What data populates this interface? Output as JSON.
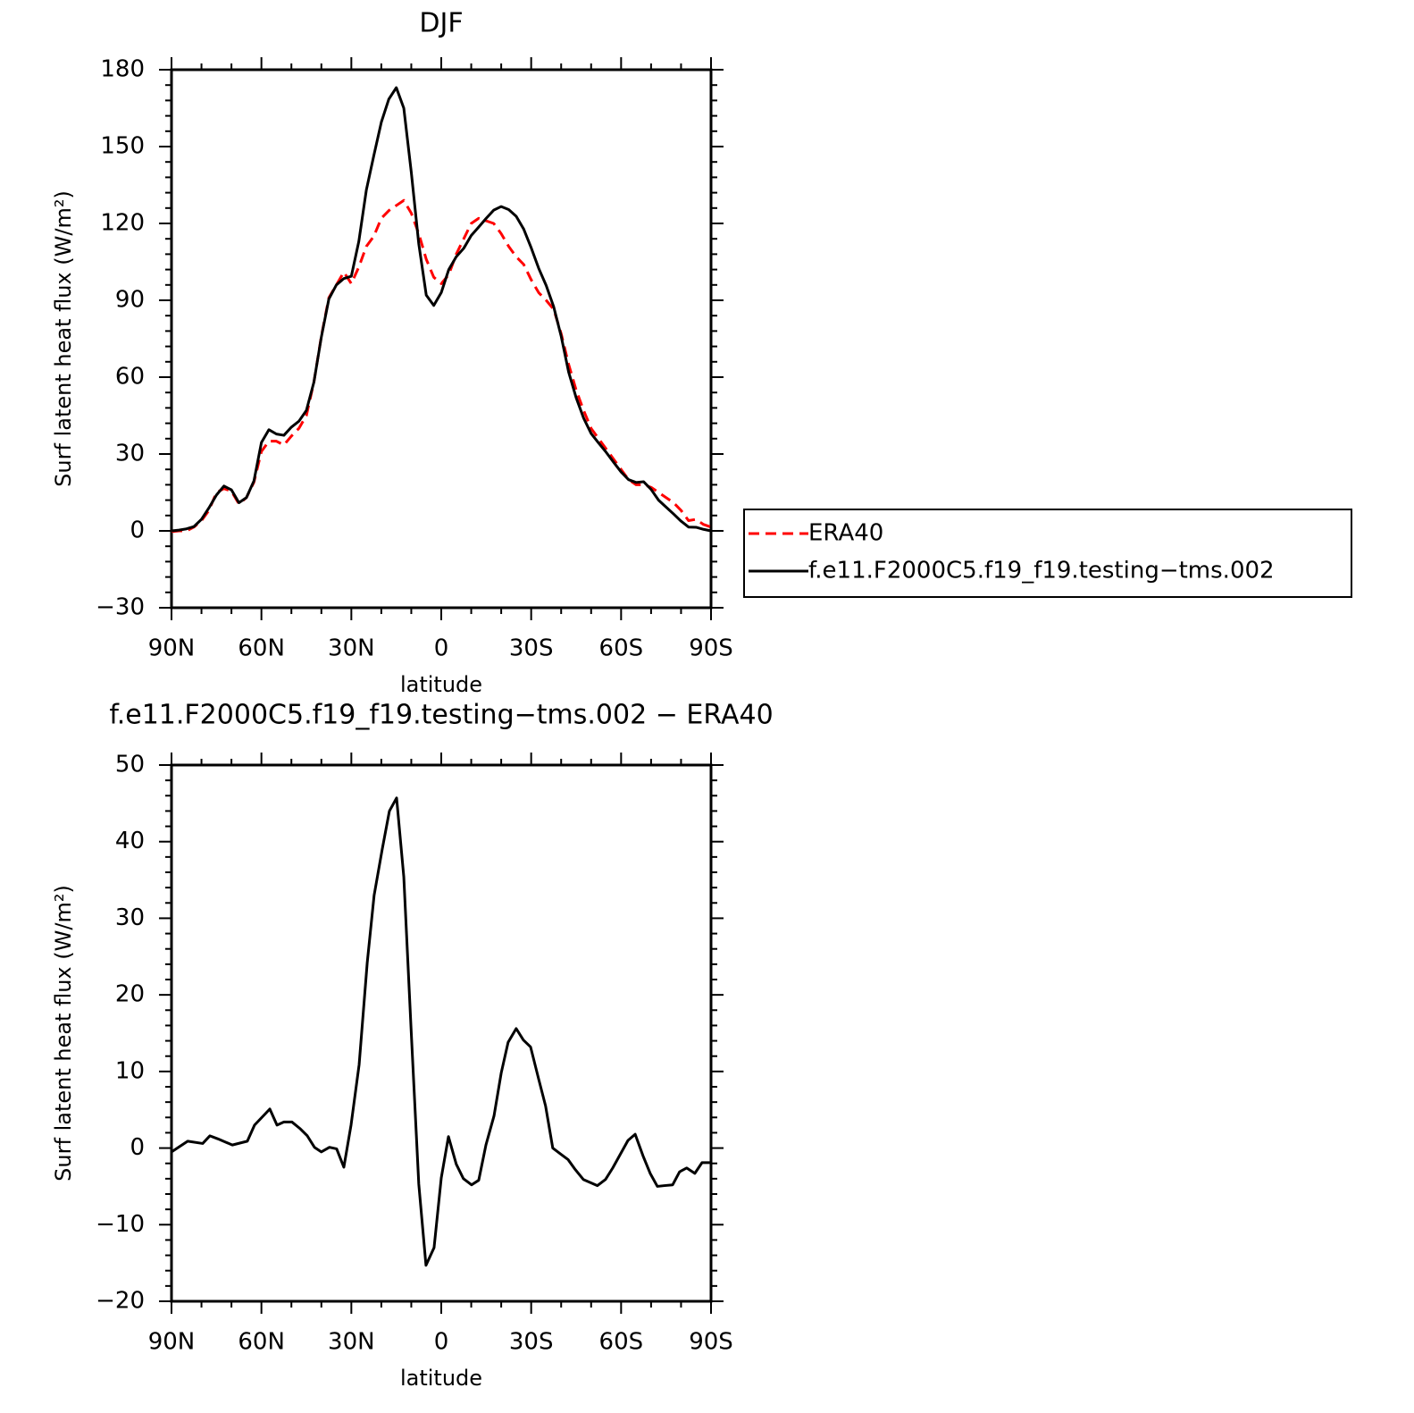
{
  "chart_data": [
    {
      "type": "line",
      "title": "DJF",
      "xlabel": "latitude",
      "ylabel": "Surf latent heat flux (W/m²)",
      "x": [
        90,
        87.5,
        85,
        82.5,
        80,
        77.5,
        75,
        72.5,
        70,
        67.5,
        65,
        62.5,
        60,
        57.5,
        55,
        52.5,
        50,
        47.5,
        45,
        42.5,
        40,
        37.5,
        35,
        32.5,
        30,
        27.5,
        25,
        22.5,
        20,
        17.5,
        15,
        12.5,
        10,
        7.5,
        5,
        2.5,
        0,
        -2.5,
        -5,
        -7.5,
        -10,
        -12.5,
        -15,
        -17.5,
        -20,
        -22.5,
        -25,
        -27.5,
        -30,
        -32.5,
        -35,
        -37.5,
        -40,
        -42.5,
        -45,
        -47.5,
        -50,
        -52.5,
        -55,
        -57.5,
        -60,
        -62.5,
        -65,
        -67.5,
        -70,
        -72.5,
        -75,
        -77.5,
        -80,
        -82.5,
        -85,
        -87.5,
        -90
      ],
      "series": [
        {
          "name": "ERA40",
          "color": "#ff0000",
          "linestyle": "dashed",
          "values": [
            -0.3,
            0,
            0,
            1.5,
            4,
            8,
            15,
            16.5,
            15.5,
            10.5,
            13,
            19,
            31,
            35,
            35,
            33.5,
            37,
            40,
            45,
            58,
            76,
            91,
            96,
            101,
            96.5,
            103,
            111,
            115,
            122,
            125,
            127,
            129,
            124,
            116,
            106,
            99,
            96.5,
            100,
            108,
            114,
            120,
            122,
            121,
            120,
            116,
            111,
            107,
            104,
            98,
            93,
            90,
            86.5,
            77,
            65,
            55,
            47,
            40,
            36,
            32,
            28,
            24,
            20,
            18,
            18,
            17,
            15,
            13,
            11,
            8,
            4,
            4.5,
            2.5,
            1.5
          ]
        },
        {
          "name": "f.e11.F2000C5.f19_f19.testing−tms.002",
          "color": "#000000",
          "linestyle": "solid",
          "values": [
            0,
            0.3,
            0.8,
            1.7,
            4.5,
            9,
            14,
            17.5,
            16,
            11,
            13,
            19.5,
            34.5,
            39.5,
            37.8,
            37.3,
            40.5,
            42.8,
            47,
            58,
            75.7,
            90.5,
            96,
            98.5,
            99.4,
            113,
            133,
            146.5,
            159.5,
            168.5,
            173,
            165,
            140,
            112,
            92,
            88,
            93,
            102,
            107,
            110.3,
            115.3,
            118.6,
            122,
            125.2,
            126.6,
            125.4,
            122.8,
            117.8,
            110.5,
            102.5,
            95.8,
            87.5,
            76,
            62,
            52,
            44,
            38,
            34.3,
            30.7,
            26.8,
            23,
            20,
            18.9,
            19.2,
            16.2,
            12,
            9.3,
            6.6,
            3.8,
            1.5,
            1.4,
            0.6,
            0
          ]
        }
      ],
      "xlim": [
        90,
        -90
      ],
      "xticks": [
        {
          "value": 90,
          "label": "90N"
        },
        {
          "value": 60,
          "label": "60N"
        },
        {
          "value": 30,
          "label": "30N"
        },
        0,
        {
          "value": -30,
          "label": "30S"
        },
        {
          "value": -60,
          "label": "60S"
        },
        {
          "value": -90,
          "label": "90S"
        }
      ],
      "ylim": [
        -30,
        180
      ],
      "yticks": [
        {
          "value": -30,
          "label": "−30"
        },
        0,
        30,
        60,
        90,
        120,
        150,
        180
      ],
      "legend": "right"
    },
    {
      "type": "line",
      "title": "f.e11.F2000C5.f19_f19.testing−tms.002 − ERA40",
      "xlabel": "latitude",
      "ylabel": "Surf latent heat flux (W/m²)",
      "x": [
        90,
        84.6,
        79.6,
        77.2,
        74.5,
        69.7,
        64.7,
        62.3,
        57.2,
        54.8,
        52.5,
        49.8,
        47,
        44.7,
        42.3,
        40,
        37.3,
        34.9,
        32.5,
        30.1,
        27.4,
        24.7,
        22.4,
        19.7,
        17.3,
        14.9,
        12.5,
        10.1,
        7.5,
        5.1,
        2.4,
        0,
        -2.4,
        -5,
        -7.4,
        -10.1,
        -12.5,
        -14.9,
        -17.6,
        -20,
        -22.3,
        -25,
        -27.4,
        -29.8,
        -32.5,
        -34.8,
        -37.2,
        -39.9,
        -42.3,
        -44.7,
        -47.4,
        -52.1,
        -54.8,
        -57.2,
        -62.3,
        -64.7,
        -67.3,
        -69.7,
        -72.1,
        -74.5,
        -77.2,
        -79.5,
        -81.9,
        -84.6,
        -87,
        -90
      ],
      "series": [
        {
          "color": "#000000",
          "linestyle": "solid",
          "values": [
            -0.5,
            0.9,
            0.6,
            1.6,
            1.2,
            0.4,
            0.9,
            3,
            5.1,
            3,
            3.4,
            3.4,
            2.5,
            1.6,
            0.1,
            -0.5,
            0.1,
            -0.1,
            -2.5,
            3,
            10.9,
            24.2,
            33,
            39,
            44,
            45.7,
            35.4,
            15.8,
            -4.7,
            -15.3,
            -13,
            -3.9,
            1.5,
            -2.1,
            -4,
            -4.8,
            -4.2,
            0.4,
            4.2,
            9.8,
            13.8,
            15.6,
            14.1,
            13.2,
            9,
            5.5,
            0,
            -0.8,
            -1.5,
            -2.8,
            -4.1,
            -4.9,
            -4.1,
            -2.6,
            1,
            1.8,
            -1,
            -3.3,
            -5,
            -4.9,
            -4.8,
            -3.1,
            -2.6,
            -3.3,
            -1.9,
            -1.9
          ]
        }
      ],
      "xlim": [
        90,
        -90
      ],
      "xticks": [
        {
          "value": 90,
          "label": "90N"
        },
        {
          "value": 60,
          "label": "60N"
        },
        {
          "value": 30,
          "label": "30N"
        },
        0,
        {
          "value": -30,
          "label": "30S"
        },
        {
          "value": -60,
          "label": "60S"
        },
        {
          "value": -90,
          "label": "90S"
        }
      ],
      "ylim": [
        -20,
        50
      ],
      "yticks": [
        {
          "value": -20,
          "label": "−20"
        },
        {
          "value": -10,
          "label": "−10"
        },
        0,
        10,
        20,
        30,
        40,
        50
      ]
    }
  ]
}
